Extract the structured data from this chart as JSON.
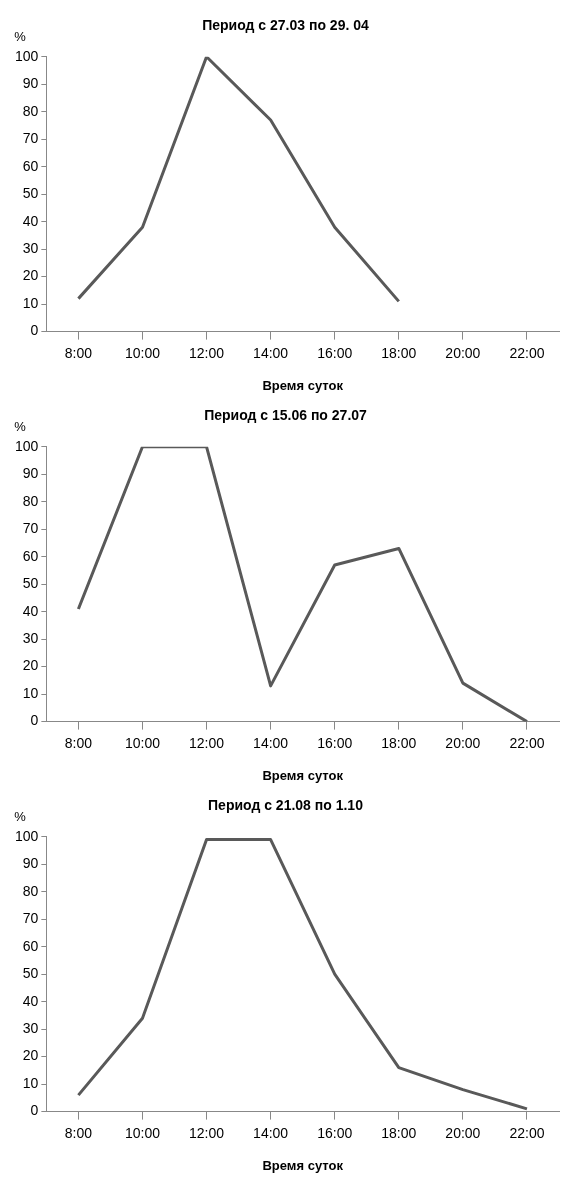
{
  "chart_data": [
    {
      "type": "line",
      "title": "Период с 27.03 по 29. 04",
      "xlabel": "Время суток",
      "ylabel": "%",
      "categories": [
        "8:00",
        "10:00",
        "12:00",
        "14:00",
        "16:00",
        "18:00",
        "20:00",
        "22:00"
      ],
      "values": [
        12,
        38,
        100,
        77,
        38,
        11,
        null,
        null
      ],
      "color": "#595959",
      "ylim": [
        0,
        100
      ],
      "yticks": [
        0,
        10,
        20,
        30,
        40,
        50,
        60,
        70,
        80,
        90,
        100
      ],
      "grid": false,
      "legend": false,
      "marker": "none",
      "line_style": "solid"
    },
    {
      "type": "line",
      "title": "Период с 15.06 по 27.07",
      "xlabel": "Время суток",
      "ylabel": "%",
      "categories": [
        "8:00",
        "10:00",
        "12:00",
        "14:00",
        "16:00",
        "18:00",
        "20:00",
        "22:00"
      ],
      "values": [
        41,
        100,
        100,
        13,
        57,
        63,
        14,
        0
      ],
      "color": "#595959",
      "ylim": [
        0,
        100
      ],
      "yticks": [
        0,
        10,
        20,
        30,
        40,
        50,
        60,
        70,
        80,
        90,
        100
      ],
      "grid": false,
      "legend": false,
      "marker": "none",
      "line_style": "solid"
    },
    {
      "type": "line",
      "title": "Период с 21.08 по 1.10",
      "xlabel": "Время суток",
      "ylabel": "%",
      "categories": [
        "8:00",
        "10:00",
        "12:00",
        "14:00",
        "16:00",
        "18:00",
        "20:00",
        "22:00"
      ],
      "values": [
        6,
        34,
        99,
        99,
        50,
        16,
        8,
        1
      ],
      "color": "#595959",
      "ylim": [
        0,
        100
      ],
      "yticks": [
        0,
        10,
        20,
        30,
        40,
        50,
        60,
        70,
        80,
        90,
        100
      ],
      "grid": false,
      "legend": false,
      "marker": "none",
      "line_style": "solid"
    }
  ]
}
